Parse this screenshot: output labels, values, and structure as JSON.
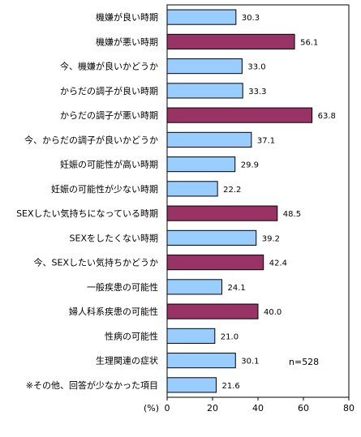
{
  "chart_data": {
    "type": "bar",
    "orientation": "horizontal",
    "categories": [
      "機嫌が良い時期",
      "機嫌が悪い時期",
      "今、機嫌が良いかどうか",
      "からだの調子が良い時期",
      "からだの調子が悪い時期",
      "今、からだの調子が良いかどうか",
      "妊娠の可能性が高い時期",
      "妊娠の可能性が少ない時期",
      "SEXしたい気持ちになっている時期",
      "SEXをしたくない時期",
      "今、SEXしたい気持ちかどうか",
      "一般疾患の可能性",
      "婦人科系疾患の可能性",
      "性病の可能性",
      "生理関連の症状",
      "※その他、回答が少なかった項目"
    ],
    "values": [
      30.3,
      56.1,
      33.0,
      33.3,
      63.8,
      37.1,
      29.9,
      22.2,
      48.5,
      39.2,
      42.4,
      24.1,
      40.0,
      21.0,
      30.1,
      21.6
    ],
    "value_labels": [
      "30.3",
      "56.1",
      "33.0",
      "33.3",
      "63.8",
      "37.1",
      "29.9",
      "22.2",
      "48.5",
      "39.2",
      "42.4",
      "24.1",
      "40.0",
      "21.0",
      "30.1",
      "21.6"
    ],
    "highlighted": [
      false,
      true,
      false,
      false,
      true,
      false,
      false,
      false,
      true,
      false,
      true,
      false,
      true,
      false,
      false,
      false
    ],
    "colors": {
      "normal": "#99ccff",
      "highlight": "#993366",
      "edge": "#000000"
    },
    "xlim": [
      0,
      80
    ],
    "xticks": [
      "0",
      "20",
      "40",
      "60",
      "80"
    ],
    "unit_label": "(%)",
    "sample_note": "n=528",
    "grid": false,
    "plot_border": true
  }
}
